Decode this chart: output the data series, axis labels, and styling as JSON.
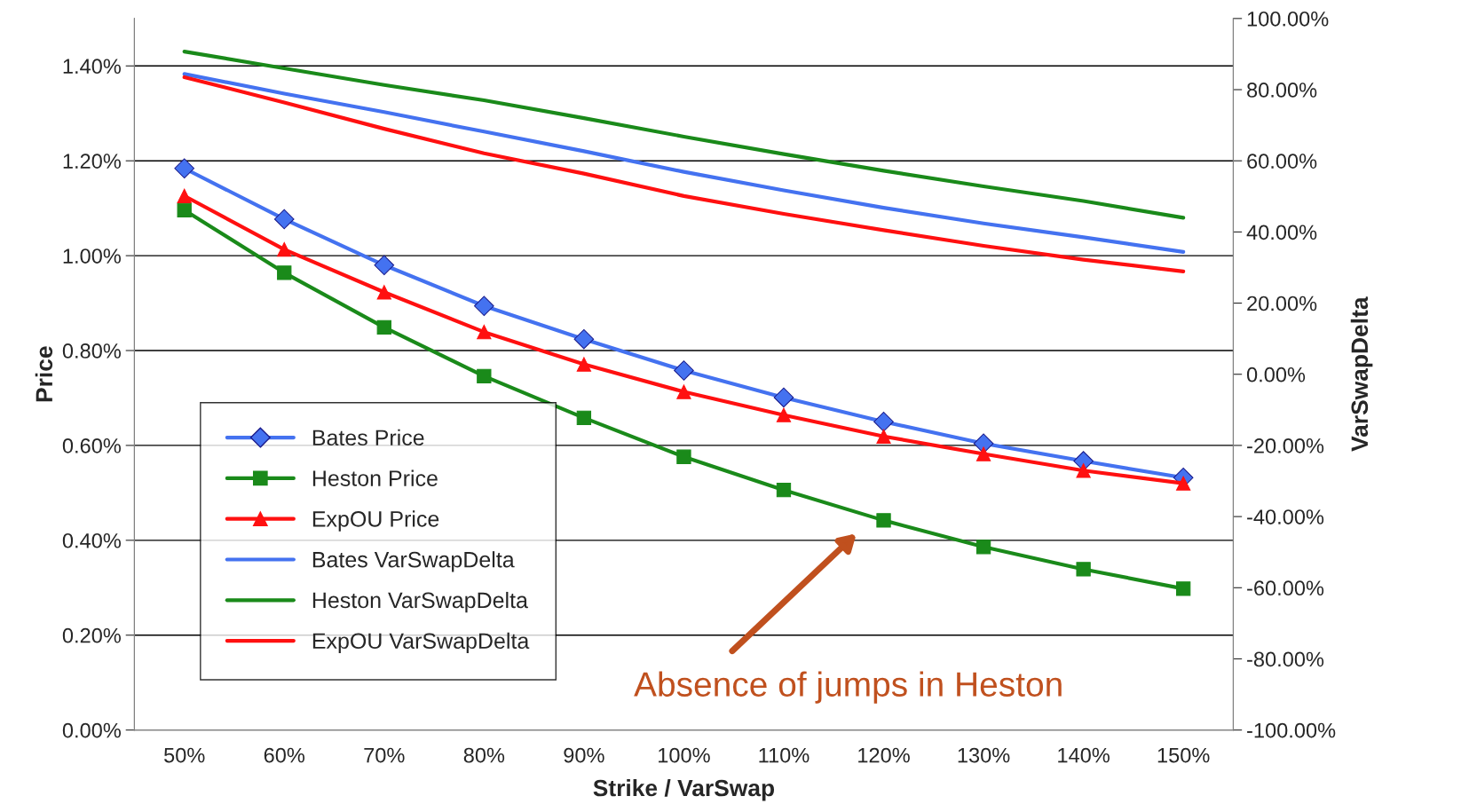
{
  "chart_data": {
    "type": "line",
    "xlabel": "Strike / VarSwap",
    "ylabel": "Price",
    "y2label": "VarSwapDelta",
    "categories": [
      "50%",
      "60%",
      "70%",
      "80%",
      "90%",
      "100%",
      "110%",
      "120%",
      "130%",
      "140%",
      "150%"
    ],
    "series": [
      {
        "name": "Bates Price",
        "color": "#4472f0",
        "marker": "diamond",
        "values": [
          1.184,
          1.077,
          0.98,
          0.894,
          0.824,
          0.758,
          0.701,
          0.65,
          0.604,
          0.567,
          0.532
        ]
      },
      {
        "name": "Heston Price",
        "color": "#1a8a1a",
        "marker": "square",
        "values": [
          1.096,
          0.964,
          0.849,
          0.746,
          0.658,
          0.576,
          0.506,
          0.442,
          0.386,
          0.339,
          0.298
        ]
      },
      {
        "name": "ExpOU Price",
        "color": "#ff1010",
        "marker": "triangle",
        "values": [
          1.126,
          1.013,
          0.923,
          0.839,
          0.771,
          0.713,
          0.664,
          0.619,
          0.582,
          0.547,
          0.52
        ]
      },
      {
        "name": "Bates VarSwapDelta",
        "color": "#4472f0",
        "marker": "none",
        "axis": "y2",
        "values": [
          84.4,
          78.9,
          73.7,
          68.2,
          62.7,
          56.9,
          51.7,
          46.8,
          42.4,
          38.5,
          34.4
        ]
      },
      {
        "name": "Heston VarSwapDelta",
        "color": "#1a8a1a",
        "marker": "none",
        "axis": "y2",
        "values": [
          90.7,
          86.0,
          81.3,
          77.0,
          72.0,
          66.8,
          61.9,
          57.2,
          52.8,
          48.7,
          44.0
        ]
      },
      {
        "name": "ExpOU VarSwapDelta",
        "color": "#ff1010",
        "marker": "none",
        "axis": "y2",
        "values": [
          83.5,
          76.4,
          69.0,
          62.1,
          56.4,
          50.1,
          45.1,
          40.5,
          36.1,
          32.2,
          28.9
        ]
      }
    ],
    "ylim": [
      0,
      1.5
    ],
    "yticks": [
      {
        "value": 0,
        "label": "0.00%"
      },
      {
        "value": 0.2,
        "label": "0.20%"
      },
      {
        "value": 0.4,
        "label": "0.40%"
      },
      {
        "value": 0.6,
        "label": "0.60%"
      },
      {
        "value": 0.8,
        "label": "0.80%"
      },
      {
        "value": 1.0,
        "label": "1.00%"
      },
      {
        "value": 1.2,
        "label": "1.20%"
      },
      {
        "value": 1.4,
        "label": "1.40%"
      }
    ],
    "y2lim": [
      -100,
      100
    ],
    "y2ticks": [
      {
        "value": -100,
        "label": "-100.00%"
      },
      {
        "value": -80,
        "label": "-80.00%"
      },
      {
        "value": -60,
        "label": "-60.00%"
      },
      {
        "value": -40,
        "label": "-40.00%"
      },
      {
        "value": -20,
        "label": "-20.00%"
      },
      {
        "value": 0,
        "label": "0.00%"
      },
      {
        "value": 20,
        "label": "20.00%"
      },
      {
        "value": 40,
        "label": "40.00%"
      },
      {
        "value": 60,
        "label": "60.00%"
      },
      {
        "value": 80,
        "label": "80.00%"
      },
      {
        "value": 100,
        "label": "100.00%"
      }
    ],
    "grid": "y",
    "legend": "bottom left",
    "line_style": "solid",
    "annotations": [
      "Absence of jumps in Heston"
    ]
  }
}
